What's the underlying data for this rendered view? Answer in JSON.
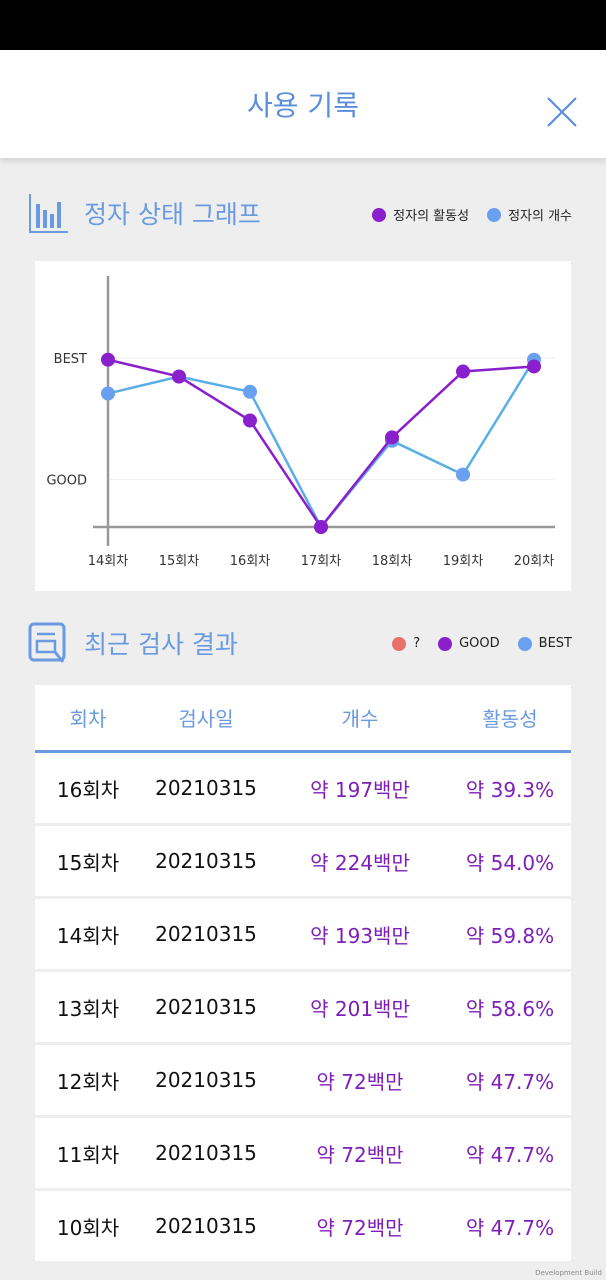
{
  "header": {
    "title": "사용 기록",
    "close_icon": "close-icon"
  },
  "graph_section": {
    "title": "정자 상태 그래프",
    "legend": [
      {
        "label": "정자의 활동성",
        "color": "#8a1fcc"
      },
      {
        "label": "정자의 개수",
        "color": "#6aa0f0"
      }
    ]
  },
  "chart_data": {
    "type": "line",
    "categories": [
      "14회차",
      "15회차",
      "16회차",
      "17회차",
      "18회차",
      "19회차",
      "20회차"
    ],
    "y_ticks": [
      {
        "label": "BEST",
        "value": 100
      },
      {
        "label": "GOOD",
        "value": 28
      }
    ],
    "ylim": [
      0,
      100
    ],
    "series": [
      {
        "name": "정자의 활동성",
        "color": "#8a1fcc",
        "values": [
          99,
          89,
          63,
          0,
          53,
          92,
          95
        ]
      },
      {
        "name": "정자의 개수",
        "color": "#6aa0f0",
        "line_color": "#5aaee6",
        "values": [
          79,
          89,
          80,
          0,
          51,
          31,
          99
        ]
      }
    ]
  },
  "results_section": {
    "title": "최근 검사 결과",
    "legend": [
      {
        "label": "?",
        "color": "#e8706a"
      },
      {
        "label": "GOOD",
        "color": "#8a1fcc"
      },
      {
        "label": "BEST",
        "color": "#6aa0f0"
      }
    ]
  },
  "table": {
    "headers": [
      "회차",
      "검사일",
      "개수",
      "활동성"
    ],
    "rows": [
      [
        "16회차",
        "20210315",
        "약 197백만",
        "약 39.3%"
      ],
      [
        "15회차",
        "20210315",
        "약 224백만",
        "약 54.0%"
      ],
      [
        "14회차",
        "20210315",
        "약 193백만",
        "약 59.8%"
      ],
      [
        "13회차",
        "20210315",
        "약 201백만",
        "약 58.6%"
      ],
      [
        "12회차",
        "20210315",
        "약 72백만",
        "약 47.7%"
      ],
      [
        "11회차",
        "20210315",
        "약 72백만",
        "약 47.7%"
      ],
      [
        "10회차",
        "20210315",
        "약 72백만",
        "약 47.7%"
      ]
    ]
  },
  "watermark": "Development Build"
}
